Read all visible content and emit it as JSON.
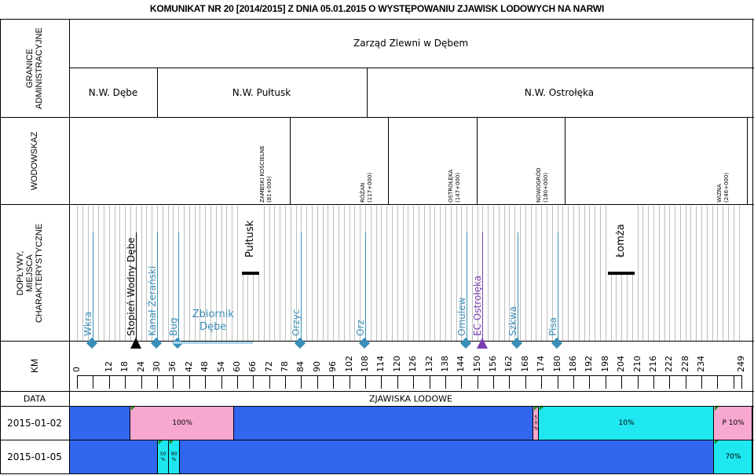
{
  "title": "KOMUNIKAT NR 20 [2014/2015] Z DNIA 05.01.2015 O WYSTĘPOWANIU ZJAWISK LODOWYCH NA NARWI",
  "row_labels": {
    "admin": [
      "GRANICE",
      "ADMINISTRACYJNE"
    ],
    "gauges": "WODOWSKAZ",
    "tributaries": [
      "DOPŁYWY,",
      "MIEJSCA",
      "CHARAKTERYSTYCZNE"
    ],
    "km": "KM",
    "date": "DATA"
  },
  "admin": {
    "top": "Zarząd Zlewni w Dębem",
    "units": [
      "N.W. Dębe",
      "N.W. Pułtusk",
      "N.W. Ostrołęka"
    ]
  },
  "gauges": [
    {
      "name": "ZAMBSKI KOŚCIELNE",
      "km": "(81+000)"
    },
    {
      "name": "RÓŻAN",
      "km": "(117+000)"
    },
    {
      "name": "OSTROŁĘKA",
      "km": "(147+000)"
    },
    {
      "name": "NOWOGRÓD",
      "km": "(180+000)"
    },
    {
      "name": "WIZNA",
      "km": "(246+000)"
    }
  ],
  "features": [
    {
      "label": "Wkra",
      "type": "tributary",
      "km": 6
    },
    {
      "label": "Stopień Wodny Dębe",
      "type": "dam",
      "km": 22
    },
    {
      "label": "Kanał Żerański",
      "type": "tributary",
      "km": 30
    },
    {
      "label": "Bug",
      "type": "tributary",
      "km": 38
    },
    {
      "label": "Orzyc",
      "type": "tributary",
      "km": 84
    },
    {
      "label": "Orz",
      "type": "tributary",
      "km": 108
    },
    {
      "label": "Omulew",
      "type": "tributary",
      "km": 146
    },
    {
      "label": "EC Ostrołęka",
      "type": "plant",
      "km": 152
    },
    {
      "label": "Szkwa",
      "type": "tributary",
      "km": 165
    },
    {
      "label": "Pisa",
      "type": "tributary",
      "km": 180
    }
  ],
  "reservoir": {
    "label_line1": "Zbiornik",
    "label_line2": "Dębe",
    "km_start": 36,
    "km_end": 66
  },
  "towns": [
    {
      "name": "Pułtusk",
      "km": 65
    },
    {
      "name": "Łomża",
      "km": 204
    }
  ],
  "km_axis": {
    "start": 0,
    "end": 249,
    "step": 6,
    "labels": [
      "0",
      "12",
      "18",
      "24",
      "30",
      "36",
      "42",
      "48",
      "54",
      "60",
      "66",
      "72",
      "78",
      "84",
      "90",
      "96",
      "102",
      "108",
      "114",
      "120",
      "126",
      "132",
      "138",
      "144",
      "150",
      "156",
      "162",
      "168",
      "174",
      "180",
      "186",
      "192",
      "198",
      "204",
      "210",
      "216",
      "222",
      "228",
      "234",
      "249"
    ]
  },
  "ice_header": "ZJAWISKA LODOWE",
  "ice_rows": [
    {
      "date": "2015-01-02",
      "segments": [
        {
          "from": 0,
          "to": 22,
          "color": "#3366ee",
          "label": ""
        },
        {
          "from": 22,
          "to": 60,
          "color": "#f7a8d0",
          "label": "100%"
        },
        {
          "from": 60,
          "to": 169,
          "color": "#3366ee",
          "label": ""
        },
        {
          "from": 169,
          "to": 171,
          "color": "#f7a8d0",
          "label": "5 0 %"
        },
        {
          "from": 171,
          "to": 235,
          "color": "#1fe7f0",
          "label": "10%"
        },
        {
          "from": 235,
          "to": 249,
          "color": "#f7a8d0",
          "label": "P 10%"
        }
      ]
    },
    {
      "date": "2015-01-05",
      "segments": [
        {
          "from": 0,
          "to": 32,
          "color": "#3366ee",
          "label": ""
        },
        {
          "from": 32,
          "to": 36,
          "color": "#1fe7f0",
          "label": "50 %"
        },
        {
          "from": 36,
          "to": 40,
          "color": "#1fe7f0",
          "label": "90 %"
        },
        {
          "from": 40,
          "to": 235,
          "color": "#3366ee",
          "label": ""
        },
        {
          "from": 235,
          "to": 249,
          "color": "#1fe7f0",
          "label": "70%"
        }
      ]
    }
  ],
  "colors": {
    "tributary": "#3a8fb7",
    "plant": "#7a3fb0",
    "reservoir": "#a7d3e8",
    "grid": "#bdbdbd"
  }
}
